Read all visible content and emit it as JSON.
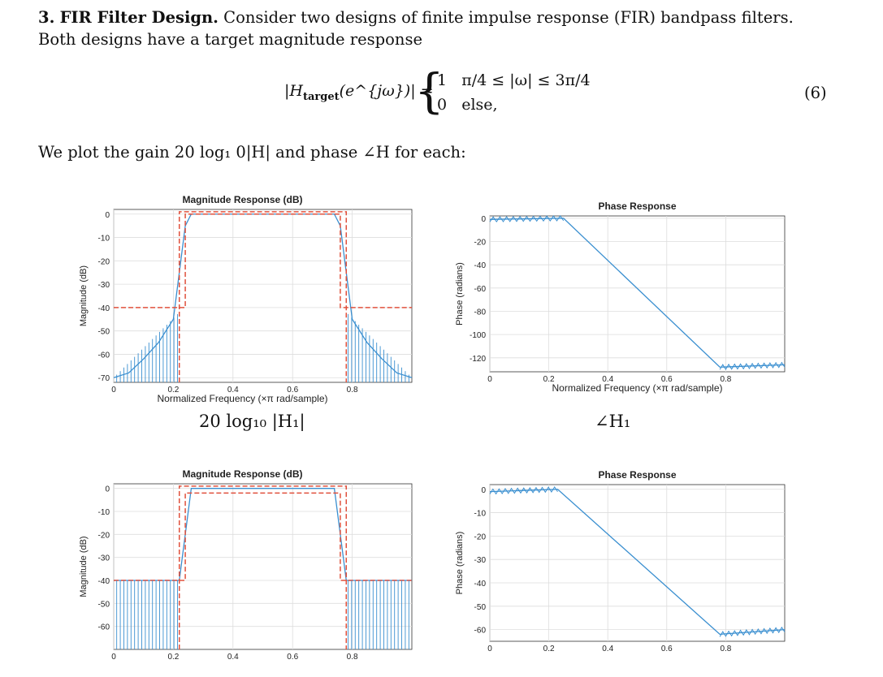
{
  "problem": {
    "number": "3.",
    "heading": "FIR Filter Design.",
    "text1": " Consider two designs of finite impulse response (FIR) bandpass filters.",
    "text2": "Both designs have a target magnitude response"
  },
  "equation": {
    "lhs": "|H",
    "lhs_sub": "target",
    "lhs_rest": "(e^{jω})| =",
    "case1_value": "1",
    "case1_condition": "π/4 ≤ |ω| ≤ 3π/4",
    "case2_value": "0",
    "case2_condition": "else,",
    "number": "(6)"
  },
  "intro2": "We plot the gain 20 log₁ 0|H| and phase ∠H for each:",
  "captions": {
    "mag1": "20 log₁₀ |H₁|",
    "phase1": "∠H₁"
  },
  "colors": {
    "response": "#3a8fd0",
    "target": "#e0503c",
    "grid": "#dddddd",
    "axis": "#333333"
  },
  "chart_data": [
    {
      "type": "line",
      "title": "Magnitude Response (dB)",
      "xlabel": "Normalized Frequency (×π rad/sample)",
      "ylabel": "Magnitude (dB)",
      "xlim": [
        0,
        1
      ],
      "ylim": [
        -72,
        2
      ],
      "xticks": [
        0,
        0.2,
        0.4,
        0.6,
        0.8
      ],
      "yticks": [
        0,
        -10,
        -20,
        -30,
        -40,
        -50,
        -60,
        -70
      ],
      "grid": true,
      "series": [
        {
          "x": [
            0,
            0.05,
            0.1,
            0.15,
            0.2,
            0.24,
            0.26,
            0.74,
            0.76,
            0.8,
            0.85,
            0.9,
            0.95,
            1.0
          ],
          "y": [
            -70,
            -68,
            -62,
            -55,
            -45,
            -5,
            0,
            0,
            -5,
            -45,
            -55,
            -62,
            -68,
            -70
          ]
        },
        {
          "x": [
            0,
            0.24,
            0.24,
            0.76,
            0.76,
            1.0
          ],
          "y": [
            -40,
            -40,
            0,
            0,
            -40,
            -40
          ]
        },
        {
          "x": [
            0.22,
            0.22,
            0.78,
            0.78
          ],
          "y": [
            -72,
            1,
            1,
            -72
          ]
        }
      ]
    },
    {
      "type": "line",
      "title": "Phase Response",
      "xlabel": "Normalized Frequency (×π rad/sample)",
      "ylabel": "Phase (radians)",
      "xlim": [
        0,
        1
      ],
      "ylim": [
        -132,
        2
      ],
      "xticks": [
        0,
        0.2,
        0.4,
        0.6,
        0.8
      ],
      "yticks": [
        0,
        -20,
        -40,
        -60,
        -80,
        -100,
        -120
      ],
      "grid": true,
      "series": [
        {
          "x": [
            0,
            0.25,
            0.78,
            1.0
          ],
          "y": [
            -1,
            0,
            -128,
            -126
          ]
        }
      ]
    },
    {
      "type": "line",
      "title": "Magnitude Response (dB)",
      "xlabel": "",
      "ylabel": "Magnitude (dB)",
      "xlim": [
        0,
        1
      ],
      "ylim": [
        -70,
        2
      ],
      "xticks": [
        0,
        0.2,
        0.4,
        0.6,
        0.8
      ],
      "yticks": [
        0,
        -10,
        -20,
        -30,
        -40,
        -50,
        -60
      ],
      "grid": true,
      "series": [
        {
          "x": [
            0,
            0.22,
            0.24,
            0.26,
            0.74,
            0.76,
            0.78,
            1.0
          ],
          "y": [
            -40,
            -40,
            -20,
            0,
            0,
            -20,
            -40,
            -40
          ]
        },
        {
          "x": [
            0,
            0.24,
            0.24,
            0.76,
            0.76,
            1.0
          ],
          "y": [
            -40,
            -40,
            -2,
            -2,
            -40,
            -40
          ]
        },
        {
          "x": [
            0.22,
            0.22,
            0.78,
            0.78
          ],
          "y": [
            -70,
            1,
            1,
            -70
          ]
        }
      ]
    },
    {
      "type": "line",
      "title": "Phase Response",
      "xlabel": "",
      "ylabel": "Phase (radians)",
      "xlim": [
        0,
        1
      ],
      "ylim": [
        -65,
        2
      ],
      "xticks": [
        0,
        0.2,
        0.4,
        0.6,
        0.8
      ],
      "yticks": [
        0,
        -10,
        -20,
        -30,
        -40,
        -50,
        -60
      ],
      "grid": true,
      "series": [
        {
          "x": [
            0,
            0.23,
            0.78,
            1.0
          ],
          "y": [
            -1,
            0,
            -62,
            -60
          ]
        }
      ]
    }
  ]
}
